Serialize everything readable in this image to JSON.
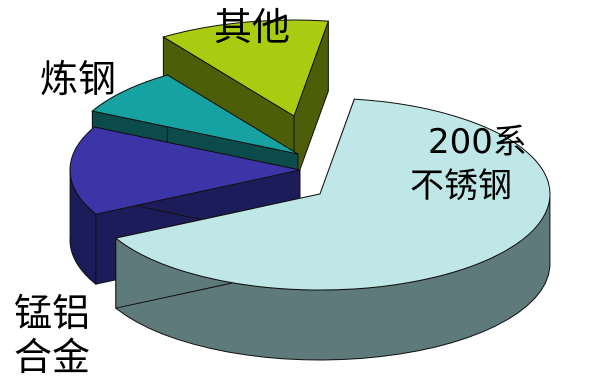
{
  "chart_data": {
    "type": "pie",
    "style": "3d-exploded",
    "categories": [
      "200系不锈钢",
      "锰铝合金",
      "炼钢",
      "其他"
    ],
    "values": [
      65,
      15,
      8,
      12
    ],
    "colors": {
      "200系不锈钢": {
        "top": "#bfe7e7",
        "side": "#5e7a7a"
      },
      "锰铝合金": {
        "top": "#3b35a8",
        "side": "#1d1c5a"
      },
      "炼钢": {
        "top": "#17a2a2",
        "side": "#0c4b4b"
      },
      "其他": {
        "top": "#a9cc10",
        "side": "#4d5e08"
      }
    }
  },
  "labels": {
    "other": "其他",
    "steelmaking": "炼钢",
    "mn_al_line1": "锰铝",
    "mn_al_line2": "合金",
    "ss200_line1": "200系",
    "ss200_line2": "不锈钢"
  }
}
